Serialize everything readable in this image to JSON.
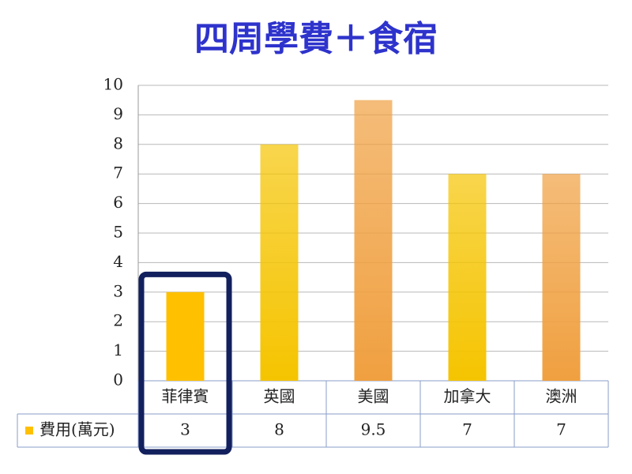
{
  "chart_data": {
    "type": "bar",
    "title": "四周學費＋食宿",
    "categories": [
      "菲律賓",
      "英國",
      "美國",
      "加拿大",
      "澳洲"
    ],
    "series": [
      {
        "name": "費用(萬元)",
        "color": "#ffc000",
        "values": [
          3,
          8,
          9.5,
          7,
          7
        ]
      }
    ],
    "colors": [
      "#ffc000",
      "#f5c400",
      "#f0a040",
      "#f5c400",
      "#f0a040"
    ],
    "ylim": [
      0,
      10
    ],
    "yticks": [
      0,
      1,
      2,
      3,
      4,
      5,
      6,
      7,
      8,
      9,
      10
    ],
    "grid": true
  }
}
